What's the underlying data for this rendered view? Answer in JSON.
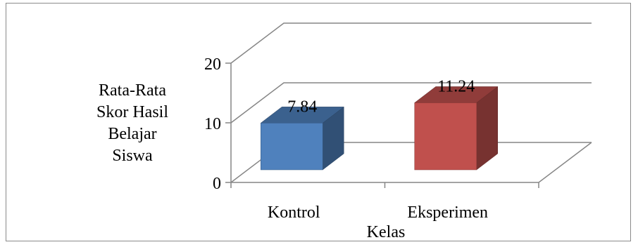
{
  "chart_data": {
    "type": "bar",
    "style": "3d-column",
    "categories": [
      "Kontrol",
      "Eksperimen"
    ],
    "series": [
      {
        "values": [
          7.84,
          11.24
        ],
        "colors": [
          "#4f81bd",
          "#c0504d"
        ]
      }
    ],
    "data_labels": [
      "7.84",
      "11.24"
    ],
    "ylabel_lines": [
      "Rata-Rata",
      "Skor Hasil",
      "Belajar",
      "Siswa"
    ],
    "xlabel": "Kelas",
    "yticks": [
      "0",
      "10",
      "20"
    ],
    "ylim": [
      0,
      20
    ],
    "grid": true,
    "legend": "none"
  }
}
